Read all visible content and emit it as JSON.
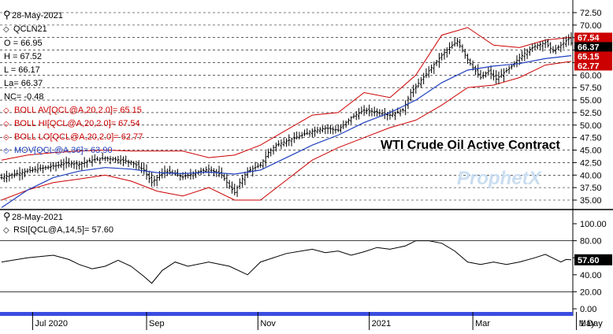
{
  "chart_data": [
    {
      "type": "candlestick",
      "date": "28-May-2021",
      "symbol": "QCLN21",
      "title": "WTI Crude Oil Active Contract",
      "watermark": "ProphetX",
      "ohlc": {
        "open": "O = 66.95",
        "high": "H = 67.52",
        "low": "L = 66.17",
        "last": "La= 66.37",
        "change": "NC= -0.48"
      },
      "indicators": [
        {
          "label": "BOLL AV[QCL@A,20,2.0]= 65.15",
          "color": "#cc0000"
        },
        {
          "label": "BOLL HI[QCL@A,20,2.0]= 67.54",
          "color": "#cc0000"
        },
        {
          "label": "BOLL LO[QCL@A,20,2.0]= 62.77",
          "color": "#cc0000"
        },
        {
          "label": "MOV[QCL@A,36]= 63.90",
          "color": "#1f3fbf"
        }
      ],
      "y_ticks": [
        "72.50",
        "70.00",
        "67.50",
        "65.00",
        "62.50",
        "60.00",
        "57.50",
        "55.00",
        "52.50",
        "50.00",
        "47.50",
        "45.00",
        "42.50",
        "40.00",
        "37.50",
        "35.00"
      ],
      "ylim": [
        34,
        74
      ],
      "price_tags": [
        {
          "label": "67.54",
          "value": 67.54,
          "bg": "#cc0000"
        },
        {
          "label": "66.37",
          "value": 66.37,
          "bg": "#000000"
        },
        {
          "label": "65.15",
          "value": 65.15,
          "bg": "#cc0000"
        },
        {
          "label": "62.77",
          "value": 62.77,
          "bg": "#cc0000"
        }
      ],
      "close_path": [
        [
          0,
          39.5
        ],
        [
          5,
          40.2
        ],
        [
          10,
          40.8
        ],
        [
          15,
          41.3
        ],
        [
          20,
          41.8
        ],
        [
          25,
          42.4
        ],
        [
          30,
          42.2
        ],
        [
          35,
          43.0
        ],
        [
          40,
          43.4
        ],
        [
          45,
          43.1
        ],
        [
          50,
          42.6
        ],
        [
          55,
          41.0
        ],
        [
          58,
          38.5
        ],
        [
          60,
          39.5
        ],
        [
          63,
          40.8
        ],
        [
          66,
          40.4
        ],
        [
          70,
          39.6
        ],
        [
          75,
          40.5
        ],
        [
          80,
          41.2
        ],
        [
          85,
          40.0
        ],
        [
          88,
          37.8
        ],
        [
          90,
          36.5
        ],
        [
          92,
          38.5
        ],
        [
          95,
          40.8
        ],
        [
          100,
          42.0
        ],
        [
          103,
          44.5
        ],
        [
          106,
          46.0
        ],
        [
          110,
          46.8
        ],
        [
          115,
          47.8
        ],
        [
          120,
          48.8
        ],
        [
          125,
          49.4
        ],
        [
          130,
          49.0
        ],
        [
          135,
          51.5
        ],
        [
          140,
          53.0
        ],
        [
          145,
          52.6
        ],
        [
          150,
          52.0
        ],
        [
          155,
          53.0
        ],
        [
          158,
          56.5
        ],
        [
          162,
          59.0
        ],
        [
          166,
          61.5
        ],
        [
          170,
          64.0
        ],
        [
          173,
          65.5
        ],
        [
          176,
          66.8
        ],
        [
          179,
          64.0
        ],
        [
          182,
          61.5
        ],
        [
          185,
          59.5
        ],
        [
          188,
          60.8
        ],
        [
          191,
          59.2
        ],
        [
          194,
          60.5
        ],
        [
          197,
          61.8
        ],
        [
          200,
          63.5
        ],
        [
          203,
          64.8
        ],
        [
          206,
          65.8
        ],
        [
          210,
          66.5
        ],
        [
          213,
          64.8
        ],
        [
          215,
          65.6
        ],
        [
          217,
          66.4
        ],
        [
          219,
          67.3
        ],
        [
          220,
          66.37
        ]
      ],
      "ma_path": [
        [
          0,
          33.5
        ],
        [
          10,
          37.0
        ],
        [
          20,
          39.5
        ],
        [
          30,
          40.8
        ],
        [
          40,
          41.5
        ],
        [
          50,
          41.2
        ],
        [
          60,
          40.5
        ],
        [
          70,
          40.3
        ],
        [
          80,
          40.6
        ],
        [
          90,
          40.2
        ],
        [
          100,
          41.0
        ],
        [
          110,
          43.5
        ],
        [
          120,
          46.0
        ],
        [
          130,
          48.0
        ],
        [
          140,
          50.5
        ],
        [
          150,
          52.5
        ],
        [
          160,
          55.0
        ],
        [
          170,
          58.5
        ],
        [
          180,
          61.0
        ],
        [
          190,
          61.8
        ],
        [
          200,
          62.3
        ],
        [
          210,
          63.3
        ],
        [
          220,
          63.9
        ]
      ],
      "band_mid": [
        [
          0,
          39.0
        ],
        [
          10,
          40.5
        ],
        [
          20,
          41.5
        ],
        [
          30,
          42.0
        ],
        [
          40,
          42.5
        ],
        [
          50,
          41.8
        ],
        [
          60,
          40.8
        ],
        [
          70,
          40.3
        ],
        [
          80,
          40.5
        ],
        [
          90,
          39.5
        ],
        [
          100,
          40.5
        ],
        [
          110,
          44.0
        ],
        [
          120,
          47.5
        ],
        [
          130,
          49.0
        ],
        [
          140,
          52.0
        ],
        [
          150,
          52.5
        ],
        [
          160,
          55.5
        ],
        [
          170,
          61.0
        ],
        [
          180,
          63.5
        ],
        [
          190,
          62.0
        ],
        [
          200,
          62.5
        ],
        [
          210,
          64.5
        ],
        [
          220,
          65.15
        ]
      ],
      "band_width": [
        4.0,
        3.5,
        3.0,
        2.8,
        2.5,
        3.0,
        4.0,
        4.5,
        3.0,
        4.5,
        5.5,
        5.0,
        4.5,
        3.5,
        4.5,
        3.0,
        4.5,
        7.0,
        6.0,
        4.0,
        3.0,
        2.5,
        2.4
      ],
      "x_labels": [
        {
          "label": "Jul 2020",
          "pos": 12
        },
        {
          "label": "Sep",
          "pos": 56
        },
        {
          "label": "Nov",
          "pos": 99
        },
        {
          "label": "2021",
          "pos": 142
        },
        {
          "label": "Mar",
          "pos": 182
        },
        {
          "label": "May",
          "pos": 222
        }
      ],
      "x_period": "1 Day",
      "n_bars": 220
    },
    {
      "type": "line",
      "date": "28-May-2021",
      "label": "RSI[QCL@A,14,5]= 57.60",
      "value": 57.6,
      "value_tag": "57.60",
      "y_ticks": [
        "100.00",
        "80.00",
        "60.00",
        "40.00",
        "20.00",
        "0.00"
      ],
      "ylim": [
        -5,
        115
      ],
      "rsi_path": [
        [
          0,
          55
        ],
        [
          10,
          60
        ],
        [
          20,
          63
        ],
        [
          26,
          58
        ],
        [
          30,
          52
        ],
        [
          35,
          47
        ],
        [
          40,
          50
        ],
        [
          45,
          57
        ],
        [
          50,
          50
        ],
        [
          55,
          38
        ],
        [
          58,
          30
        ],
        [
          62,
          45
        ],
        [
          67,
          55
        ],
        [
          72,
          50
        ],
        [
          80,
          55
        ],
        [
          88,
          50
        ],
        [
          95,
          40
        ],
        [
          100,
          55
        ],
        [
          110,
          65
        ],
        [
          120,
          70
        ],
        [
          125,
          66
        ],
        [
          130,
          68
        ],
        [
          135,
          63
        ],
        [
          140,
          67
        ],
        [
          145,
          72
        ],
        [
          150,
          70
        ],
        [
          156,
          74
        ],
        [
          160,
          80
        ],
        [
          165,
          80
        ],
        [
          170,
          77
        ],
        [
          175,
          68
        ],
        [
          180,
          55
        ],
        [
          185,
          52
        ],
        [
          190,
          55
        ],
        [
          195,
          52
        ],
        [
          200,
          55
        ],
        [
          206,
          60
        ],
        [
          210,
          64
        ],
        [
          214,
          58
        ],
        [
          216,
          55
        ],
        [
          218,
          58
        ],
        [
          220,
          57.6
        ]
      ]
    }
  ]
}
